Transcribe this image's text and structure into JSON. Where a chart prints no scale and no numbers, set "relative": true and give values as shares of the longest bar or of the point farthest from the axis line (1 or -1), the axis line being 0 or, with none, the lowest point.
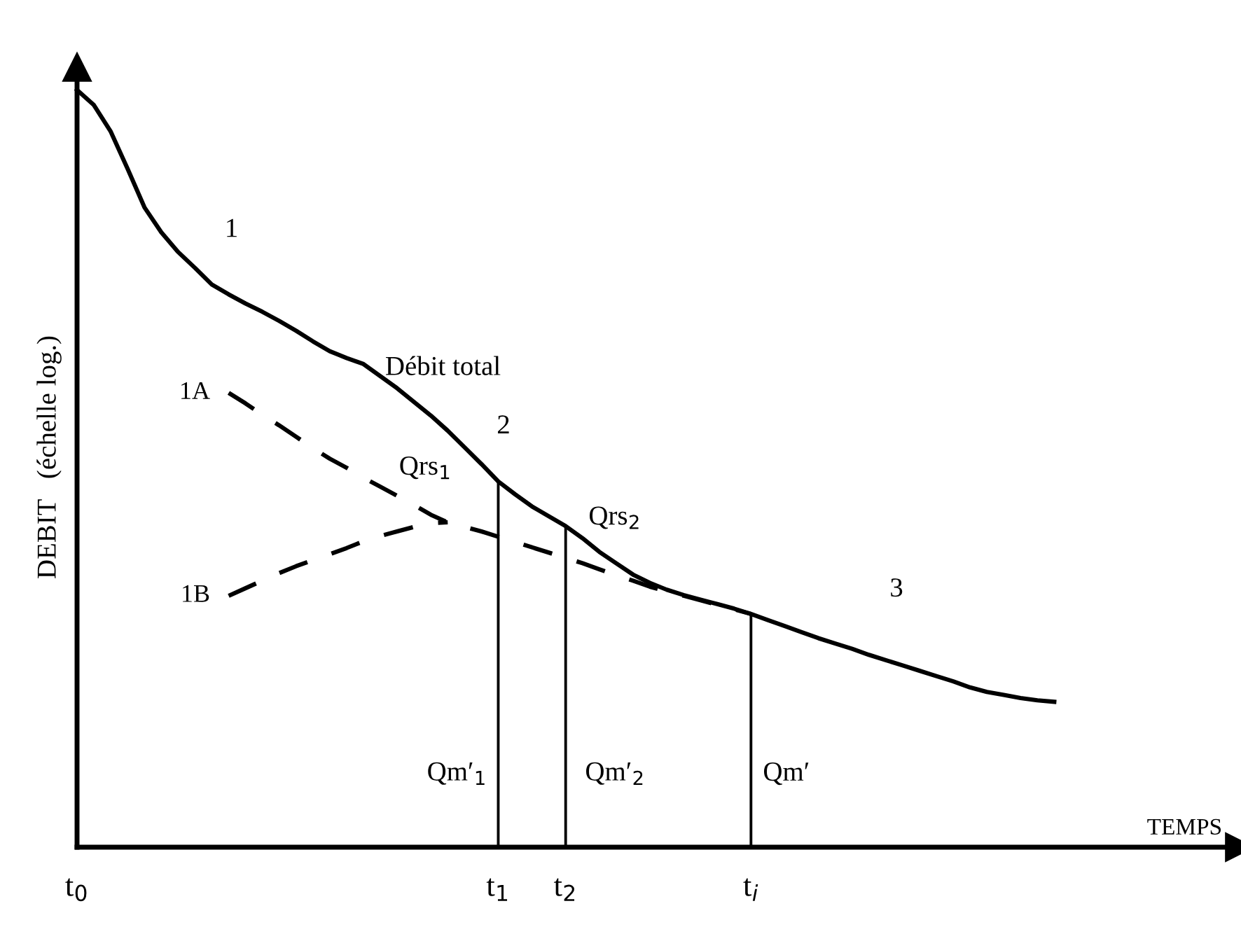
{
  "chart_data": {
    "type": "line",
    "relative": true,
    "xlabel": "TEMPS",
    "ylabel": "DEBIT   (échelle log.)",
    "categories": [
      "t$_{0}$",
      null,
      null,
      null,
      null,
      null,
      null,
      null,
      null,
      null,
      null,
      null,
      null,
      null,
      null,
      null,
      null,
      null,
      null,
      null,
      null,
      null,
      null,
      null,
      null,
      "t$_{1}$",
      null,
      null,
      null,
      "t$_{2}$",
      null,
      null,
      null,
      null,
      null,
      null,
      null,
      null,
      null,
      null,
      "t$_{i}$",
      null,
      null,
      null,
      null,
      null,
      null,
      null,
      null,
      null,
      null,
      null,
      null,
      null,
      null,
      null,
      null,
      null,
      null,
      null,
      null,
      null,
      null,
      null,
      null,
      null,
      null,
      null,
      null,
      null
    ],
    "grid": false,
    "legend": false,
    "marker": "none",
    "series": [
      {
        "color": "#000000",
        "line_style": "solid",
        "values": [
          1.0,
          0.98,
          0.945,
          0.896,
          0.845,
          0.812,
          0.786,
          0.765,
          0.743,
          0.73,
          0.718,
          0.707,
          0.695,
          0.682,
          0.668,
          0.655,
          0.646,
          0.638,
          0.622,
          0.606,
          0.588,
          0.57,
          0.55,
          0.528,
          0.506,
          0.483,
          0.466,
          0.45,
          0.437,
          0.424,
          0.408,
          0.39,
          0.375,
          0.36,
          0.349,
          0.34,
          0.333,
          0.327,
          0.321,
          0.315,
          0.308,
          0.3,
          0.292,
          0.284,
          0.276,
          0.269,
          0.262,
          0.254,
          0.247,
          0.24,
          0.233,
          0.226,
          0.219,
          0.211,
          0.205,
          0.201,
          0.197,
          0.194,
          0.192,
          null,
          null,
          null,
          null,
          null,
          null,
          null,
          null,
          null,
          null,
          null
        ]
      },
      {
        "name": "1A",
        "color": "#000000",
        "line_style": "dashed",
        "values": [
          null,
          null,
          null,
          null,
          null,
          null,
          null,
          null,
          null,
          0.6,
          0.586,
          0.571,
          0.557,
          0.542,
          0.527,
          0.513,
          0.501,
          0.488,
          0.476,
          0.464,
          0.452,
          0.439,
          0.429,
          0.423,
          0.417,
          0.41,
          0.403,
          0.396,
          0.389,
          0.382,
          0.375,
          0.367,
          0.359,
          0.352,
          0.344,
          0.338,
          0.332,
          0.326,
          0.32,
          0.314,
          0.308,
          null,
          null,
          null,
          null,
          null,
          null,
          null,
          null,
          null,
          null,
          null,
          null,
          null,
          null,
          null,
          null,
          null,
          null,
          null,
          null,
          null,
          null,
          null,
          null,
          null,
          null,
          null,
          null,
          null
        ]
      },
      {
        "name": "1B",
        "color": "#000000",
        "line_style": "dashed",
        "values": [
          null,
          null,
          null,
          null,
          null,
          null,
          null,
          null,
          null,
          0.332,
          0.342,
          0.352,
          0.362,
          0.371,
          0.379,
          0.387,
          0.395,
          0.404,
          0.411,
          0.417,
          0.423,
          0.428,
          0.429,
          null,
          null,
          null,
          null,
          null,
          null,
          null,
          null,
          null,
          null,
          null,
          null,
          null,
          null,
          null,
          null,
          null,
          null,
          null,
          null,
          null,
          null,
          null,
          null,
          null,
          null,
          null,
          null,
          null,
          null,
          null,
          null,
          null,
          null,
          null,
          null,
          null,
          null,
          null,
          null,
          null,
          null,
          null,
          null,
          null,
          null,
          null
        ]
      },
      {
        "type": "bar",
        "color": "#000000",
        "values": [
          null,
          null,
          null,
          null,
          null,
          null,
          null,
          null,
          null,
          null,
          null,
          null,
          null,
          null,
          null,
          null,
          null,
          null,
          null,
          null,
          null,
          null,
          null,
          null,
          null,
          0.483,
          null,
          null,
          null,
          0.424,
          null,
          null,
          null,
          null,
          null,
          null,
          null,
          null,
          null,
          null,
          0.308,
          null,
          null,
          null,
          null,
          null,
          null,
          null,
          null,
          null,
          null,
          null,
          null,
          null,
          null,
          null,
          null,
          null,
          null,
          null,
          null,
          null,
          null,
          null,
          null,
          null,
          null,
          null,
          null,
          null
        ]
      }
    ],
    "annotations": [
      "1",
      "Débit total",
      "2",
      "3",
      "Qrs$_{1}$",
      "Qrs$_{2}$",
      "Qm′$_{1}$",
      "Qm′$_{2}$",
      "Qm′"
    ]
  }
}
